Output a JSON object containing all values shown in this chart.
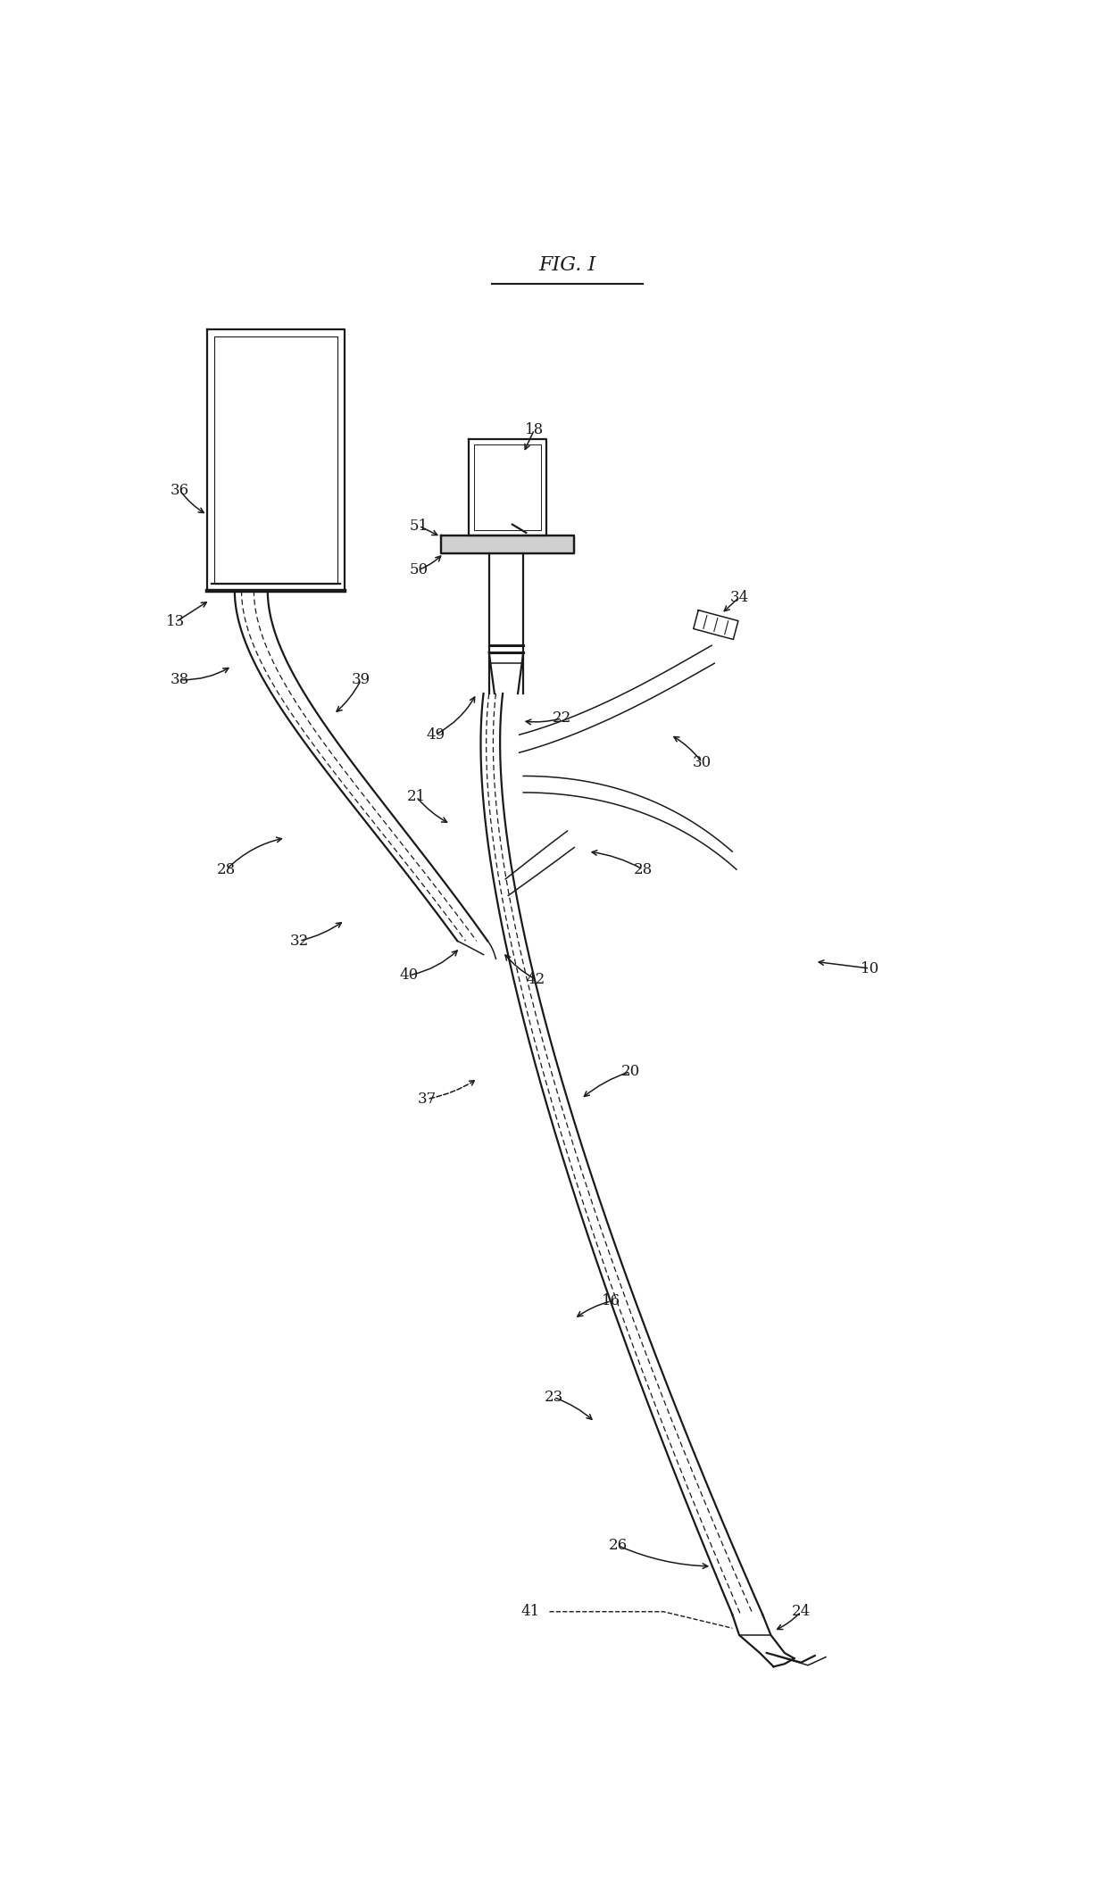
{
  "title": "FIG. I",
  "bg_color": "#ffffff",
  "line_color": "#1a1a1a",
  "fig_width": 12.4,
  "fig_height": 21.12,
  "dpi": 100
}
